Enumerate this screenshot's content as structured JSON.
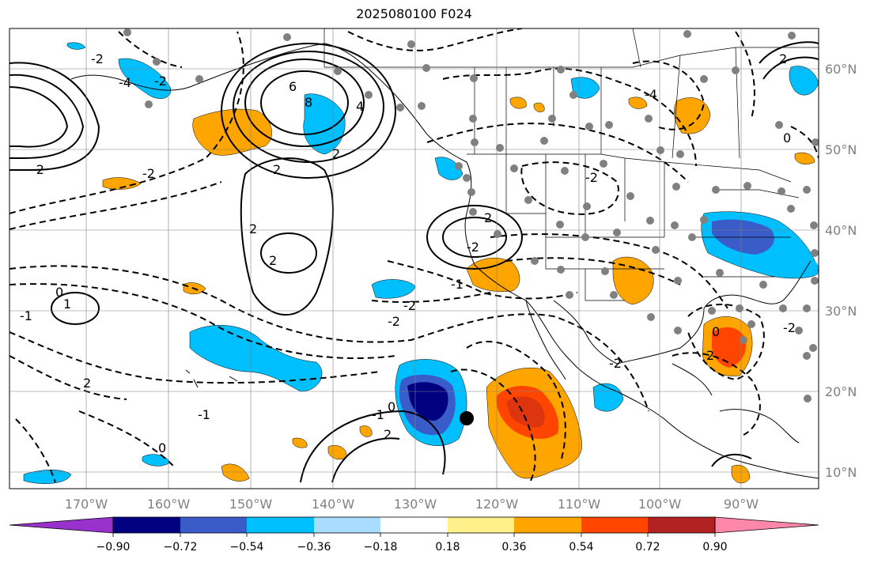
{
  "title": "2025080100 F024",
  "map": {
    "longitude_labels": [
      "170°W",
      "160°W",
      "150°W",
      "140°W",
      "130°W",
      "120°W",
      "110°W",
      "100°W",
      "90°W"
    ],
    "latitude_labels": [
      "60°N",
      "50°N",
      "40°N",
      "30°N",
      "20°N",
      "10°N"
    ],
    "contour_labels": [
      "-2",
      "-2",
      "2",
      "-4",
      "6",
      "8",
      "4",
      "2",
      "-2",
      "2",
      "-2",
      "2",
      "-2",
      "-2",
      "1",
      "0",
      "-1",
      "2",
      "-1",
      "2",
      "-2",
      "2",
      "0",
      "-1",
      "0",
      "-1",
      "2",
      "-2",
      "0",
      "-2",
      "0",
      "-2",
      "-4",
      "2"
    ]
  },
  "colorbar": {
    "tick_labels": [
      "−0.90",
      "−0.72",
      "−0.54",
      "−0.36",
      "−0.18",
      "0.18",
      "0.36",
      "0.54",
      "0.72",
      "0.90"
    ],
    "colors": [
      "#9932cc",
      "#000080",
      "#3a5cc9",
      "#00bfff",
      "#aadcff",
      "#ffffff",
      "#fff08c",
      "#ffa500",
      "#ff4500",
      "#b22222",
      "#ff88aa"
    ]
  }
}
